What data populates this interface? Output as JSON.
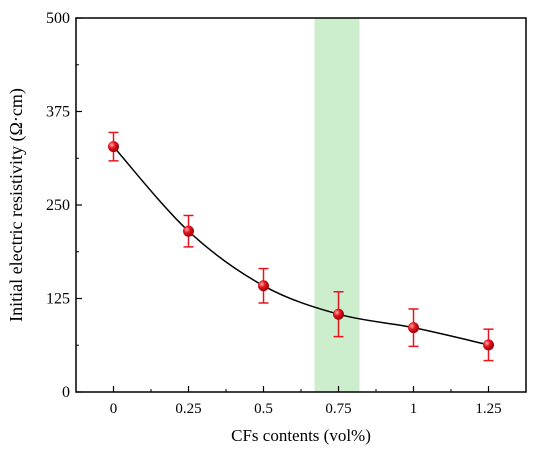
{
  "chart_data": {
    "type": "line",
    "xlabel": "CFs contents (vol%)",
    "ylabel": "Initial electric resistivity (Ω·cm)",
    "x_ticks": [
      "0",
      "0.25",
      "0.5",
      "0.75",
      "1",
      "1.25"
    ],
    "y_ticks": [
      "0",
      "125",
      "250",
      "375",
      "500"
    ],
    "xlim": [
      -0.125,
      1.375
    ],
    "ylim": [
      0,
      500
    ],
    "x": [
      0,
      0.25,
      0.5,
      0.75,
      1.0,
      1.25
    ],
    "y": [
      328,
      215,
      142,
      104,
      86,
      63
    ],
    "error": [
      19,
      21,
      23,
      30,
      25,
      21
    ],
    "highlight_band": [
      0.67,
      0.82
    ],
    "colors": {
      "marker": "#e8141e",
      "line": "#000000",
      "band": "#cdeecd"
    },
    "grid": false,
    "legend": "none"
  }
}
